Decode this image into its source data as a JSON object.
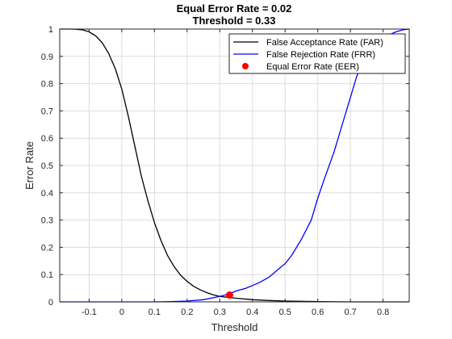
{
  "chart_data": {
    "type": "line",
    "title_lines": [
      "Equal Error Rate = 0.02",
      "Threshold = 0.33"
    ],
    "xlabel": "Threshold",
    "ylabel": "Error Rate",
    "xlim": [
      -0.19,
      0.88
    ],
    "ylim": [
      0,
      1
    ],
    "xticks": [
      -0.1,
      0,
      0.1,
      0.2,
      0.3,
      0.4,
      0.5,
      0.6,
      0.7,
      0.8
    ],
    "yticks": [
      0,
      0.1,
      0.2,
      0.3,
      0.4,
      0.5,
      0.6,
      0.7,
      0.8,
      0.9,
      1
    ],
    "grid": true,
    "legend_position": "top-right",
    "series": [
      {
        "name": "False Acceptance Rate (FAR)",
        "color": "#000000",
        "style": "line",
        "x": [
          -0.19,
          -0.15,
          -0.12,
          -0.1,
          -0.08,
          -0.06,
          -0.04,
          -0.02,
          0.0,
          0.02,
          0.04,
          0.06,
          0.08,
          0.1,
          0.12,
          0.14,
          0.16,
          0.18,
          0.2,
          0.22,
          0.24,
          0.26,
          0.28,
          0.3,
          0.33,
          0.36,
          0.4,
          0.45,
          0.5,
          0.55,
          0.6,
          0.7,
          0.88
        ],
        "y": [
          1.0,
          1.0,
          0.997,
          0.99,
          0.975,
          0.95,
          0.91,
          0.855,
          0.78,
          0.68,
          0.57,
          0.46,
          0.37,
          0.29,
          0.225,
          0.17,
          0.13,
          0.098,
          0.075,
          0.057,
          0.044,
          0.034,
          0.026,
          0.02,
          0.016,
          0.012,
          0.008,
          0.005,
          0.003,
          0.002,
          0.001,
          0.0,
          0.0
        ]
      },
      {
        "name": "False Rejection Rate (FRR)",
        "color": "#0000ff",
        "style": "line",
        "x": [
          -0.19,
          0.1,
          0.15,
          0.2,
          0.25,
          0.28,
          0.3,
          0.33,
          0.35,
          0.38,
          0.4,
          0.42,
          0.45,
          0.48,
          0.5,
          0.52,
          0.55,
          0.58,
          0.6,
          0.62,
          0.65,
          0.68,
          0.7,
          0.72,
          0.75,
          0.78,
          0.8,
          0.82,
          0.84,
          0.86,
          0.88
        ],
        "y": [
          0.0,
          0.0,
          0.001,
          0.003,
          0.008,
          0.015,
          0.02,
          0.03,
          0.04,
          0.05,
          0.06,
          0.07,
          0.09,
          0.12,
          0.14,
          0.17,
          0.23,
          0.3,
          0.38,
          0.45,
          0.55,
          0.67,
          0.75,
          0.83,
          0.89,
          0.94,
          0.965,
          0.98,
          0.99,
          0.997,
          1.0
        ]
      },
      {
        "name": "Equal Error Rate (EER)",
        "color": "#ff0000",
        "style": "marker",
        "x": [
          0.33
        ],
        "y": [
          0.025
        ]
      }
    ]
  }
}
